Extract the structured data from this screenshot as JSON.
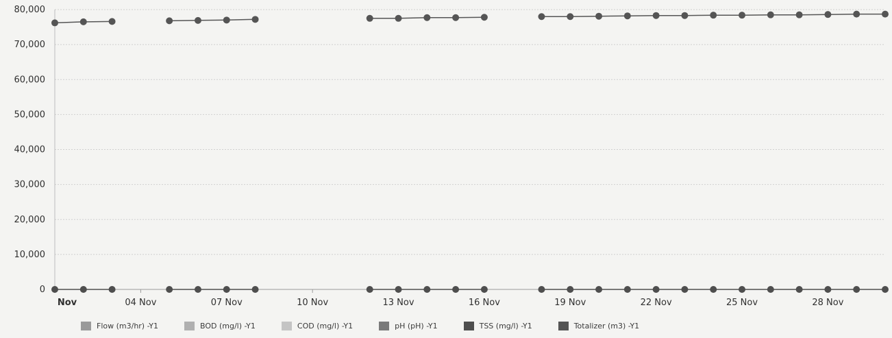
{
  "chart_data": {
    "type": "line",
    "title": "",
    "xlabel": "",
    "ylabel": "",
    "x_start": "2023-11-01",
    "x_end": "2023-11-30",
    "ylim": [
      0,
      80000
    ],
    "yticks": [
      "0",
      "10,000",
      "20,000",
      "30,000",
      "40,000",
      "50,000",
      "60,000",
      "70,000",
      "80,000"
    ],
    "xtick_labels": [
      {
        "x": "2023-11-01",
        "label": "Nov",
        "bold": true
      },
      {
        "x": "2023-11-04",
        "label": "04 Nov"
      },
      {
        "x": "2023-11-07",
        "label": "07 Nov"
      },
      {
        "x": "2023-11-10",
        "label": "10 Nov"
      },
      {
        "x": "2023-11-13",
        "label": "13 Nov"
      },
      {
        "x": "2023-11-16",
        "label": "16 Nov"
      },
      {
        "x": "2023-11-19",
        "label": "19 Nov"
      },
      {
        "x": "2023-11-22",
        "label": "22 Nov"
      },
      {
        "x": "2023-11-25",
        "label": "25 Nov"
      },
      {
        "x": "2023-11-28",
        "label": "28 Nov"
      }
    ],
    "grid": true,
    "legend_position": "bottom",
    "series": [
      {
        "name": "Flow (m3/hr) -Y1",
        "color": "#9a9a9a",
        "show_markers": false,
        "segments": []
      },
      {
        "name": "BOD (mg/l) -Y1",
        "color": "#b0b0b0",
        "show_markers": false,
        "segments": []
      },
      {
        "name": "COD (mg/l) -Y1",
        "color": "#c4c4c4",
        "show_markers": false,
        "segments": []
      },
      {
        "name": "pH (pH) -Y1",
        "color": "#7a7a7a",
        "show_markers": false,
        "segments": []
      },
      {
        "name": "TSS (mg/l) -Y1",
        "color": "#4e4e4e",
        "show_markers": true,
        "segments": [
          [
            [
              "2023-11-01",
              0
            ],
            [
              "2023-11-02",
              0
            ],
            [
              "2023-11-03",
              0
            ]
          ],
          [
            [
              "2023-11-05",
              0
            ],
            [
              "2023-11-06",
              0
            ],
            [
              "2023-11-07",
              0
            ],
            [
              "2023-11-08",
              0
            ]
          ],
          [
            [
              "2023-11-12",
              0
            ],
            [
              "2023-11-13",
              0
            ],
            [
              "2023-11-14",
              0
            ],
            [
              "2023-11-15",
              0
            ],
            [
              "2023-11-16",
              0
            ]
          ],
          [
            [
              "2023-11-18",
              0
            ],
            [
              "2023-11-19",
              0
            ],
            [
              "2023-11-20",
              0
            ],
            [
              "2023-11-21",
              0
            ],
            [
              "2023-11-22",
              0
            ],
            [
              "2023-11-23",
              0
            ],
            [
              "2023-11-24",
              0
            ],
            [
              "2023-11-25",
              0
            ],
            [
              "2023-11-26",
              0
            ],
            [
              "2023-11-27",
              0
            ],
            [
              "2023-11-28",
              0
            ],
            [
              "2023-11-29",
              0
            ],
            [
              "2023-11-30",
              0
            ]
          ]
        ]
      },
      {
        "name": "Totalizer (m3) -Y1",
        "color": "#555555",
        "show_markers": true,
        "segments": [
          [
            [
              "2023-11-01",
              76200
            ],
            [
              "2023-11-02",
              76500
            ],
            [
              "2023-11-03",
              76600
            ]
          ],
          [
            [
              "2023-11-05",
              76800
            ],
            [
              "2023-11-06",
              76900
            ],
            [
              "2023-11-07",
              77000
            ],
            [
              "2023-11-08",
              77200
            ]
          ],
          [
            [
              "2023-11-12",
              77500
            ],
            [
              "2023-11-13",
              77500
            ],
            [
              "2023-11-14",
              77700
            ],
            [
              "2023-11-15",
              77700
            ],
            [
              "2023-11-16",
              77800
            ]
          ],
          [
            [
              "2023-11-18",
              78000
            ],
            [
              "2023-11-19",
              78000
            ],
            [
              "2023-11-20",
              78100
            ],
            [
              "2023-11-21",
              78200
            ],
            [
              "2023-11-22",
              78300
            ],
            [
              "2023-11-23",
              78300
            ],
            [
              "2023-11-24",
              78400
            ],
            [
              "2023-11-25",
              78400
            ],
            [
              "2023-11-26",
              78500
            ],
            [
              "2023-11-27",
              78500
            ],
            [
              "2023-11-28",
              78600
            ],
            [
              "2023-11-29",
              78700
            ],
            [
              "2023-11-30",
              78700
            ]
          ]
        ]
      }
    ]
  }
}
